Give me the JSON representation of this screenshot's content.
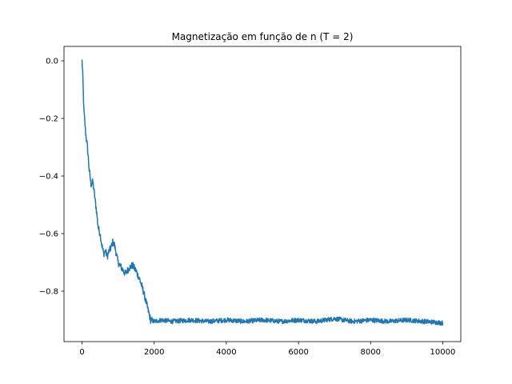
{
  "chart_data": {
    "type": "line",
    "title": "Magnetização em função de n (T = 2)",
    "xlabel": "",
    "ylabel": "",
    "xlim": [
      -500,
      10500
    ],
    "ylim": [
      -0.975,
      0.05
    ],
    "x_ticks": [
      0,
      2000,
      4000,
      6000,
      8000,
      10000
    ],
    "x_tick_labels": [
      "0",
      "2000",
      "4000",
      "6000",
      "8000",
      "10000"
    ],
    "y_ticks": [
      0.0,
      -0.2,
      -0.4,
      -0.6,
      -0.8
    ],
    "y_tick_labels": [
      "0.0",
      "−0.2",
      "−0.4",
      "−0.6",
      "−0.8"
    ],
    "grid": false,
    "legend": "none",
    "series": [
      {
        "color": "#1f77b4",
        "x": [
          0,
          20,
          50,
          100,
          150,
          200,
          250,
          300,
          350,
          400,
          450,
          500,
          550,
          600,
          650,
          700,
          750,
          800,
          850,
          900,
          950,
          1000,
          1100,
          1200,
          1300,
          1400,
          1500,
          1600,
          1700,
          1800,
          1900,
          2000,
          2200,
          2500,
          3000,
          3500,
          4000,
          4500,
          5000,
          5500,
          6000,
          6500,
          7000,
          7500,
          8000,
          8500,
          9000,
          9500,
          10000
        ],
        "values": [
          0.0,
          -0.05,
          -0.17,
          -0.25,
          -0.3,
          -0.38,
          -0.43,
          -0.42,
          -0.47,
          -0.52,
          -0.58,
          -0.6,
          -0.64,
          -0.67,
          -0.66,
          -0.68,
          -0.66,
          -0.65,
          -0.63,
          -0.64,
          -0.67,
          -0.7,
          -0.72,
          -0.74,
          -0.72,
          -0.71,
          -0.73,
          -0.76,
          -0.8,
          -0.85,
          -0.9,
          -0.905,
          -0.9,
          -0.905,
          -0.9,
          -0.905,
          -0.9,
          -0.905,
          -0.9,
          -0.905,
          -0.9,
          -0.905,
          -0.895,
          -0.905,
          -0.9,
          -0.905,
          -0.9,
          -0.905,
          -0.91
        ]
      }
    ]
  }
}
